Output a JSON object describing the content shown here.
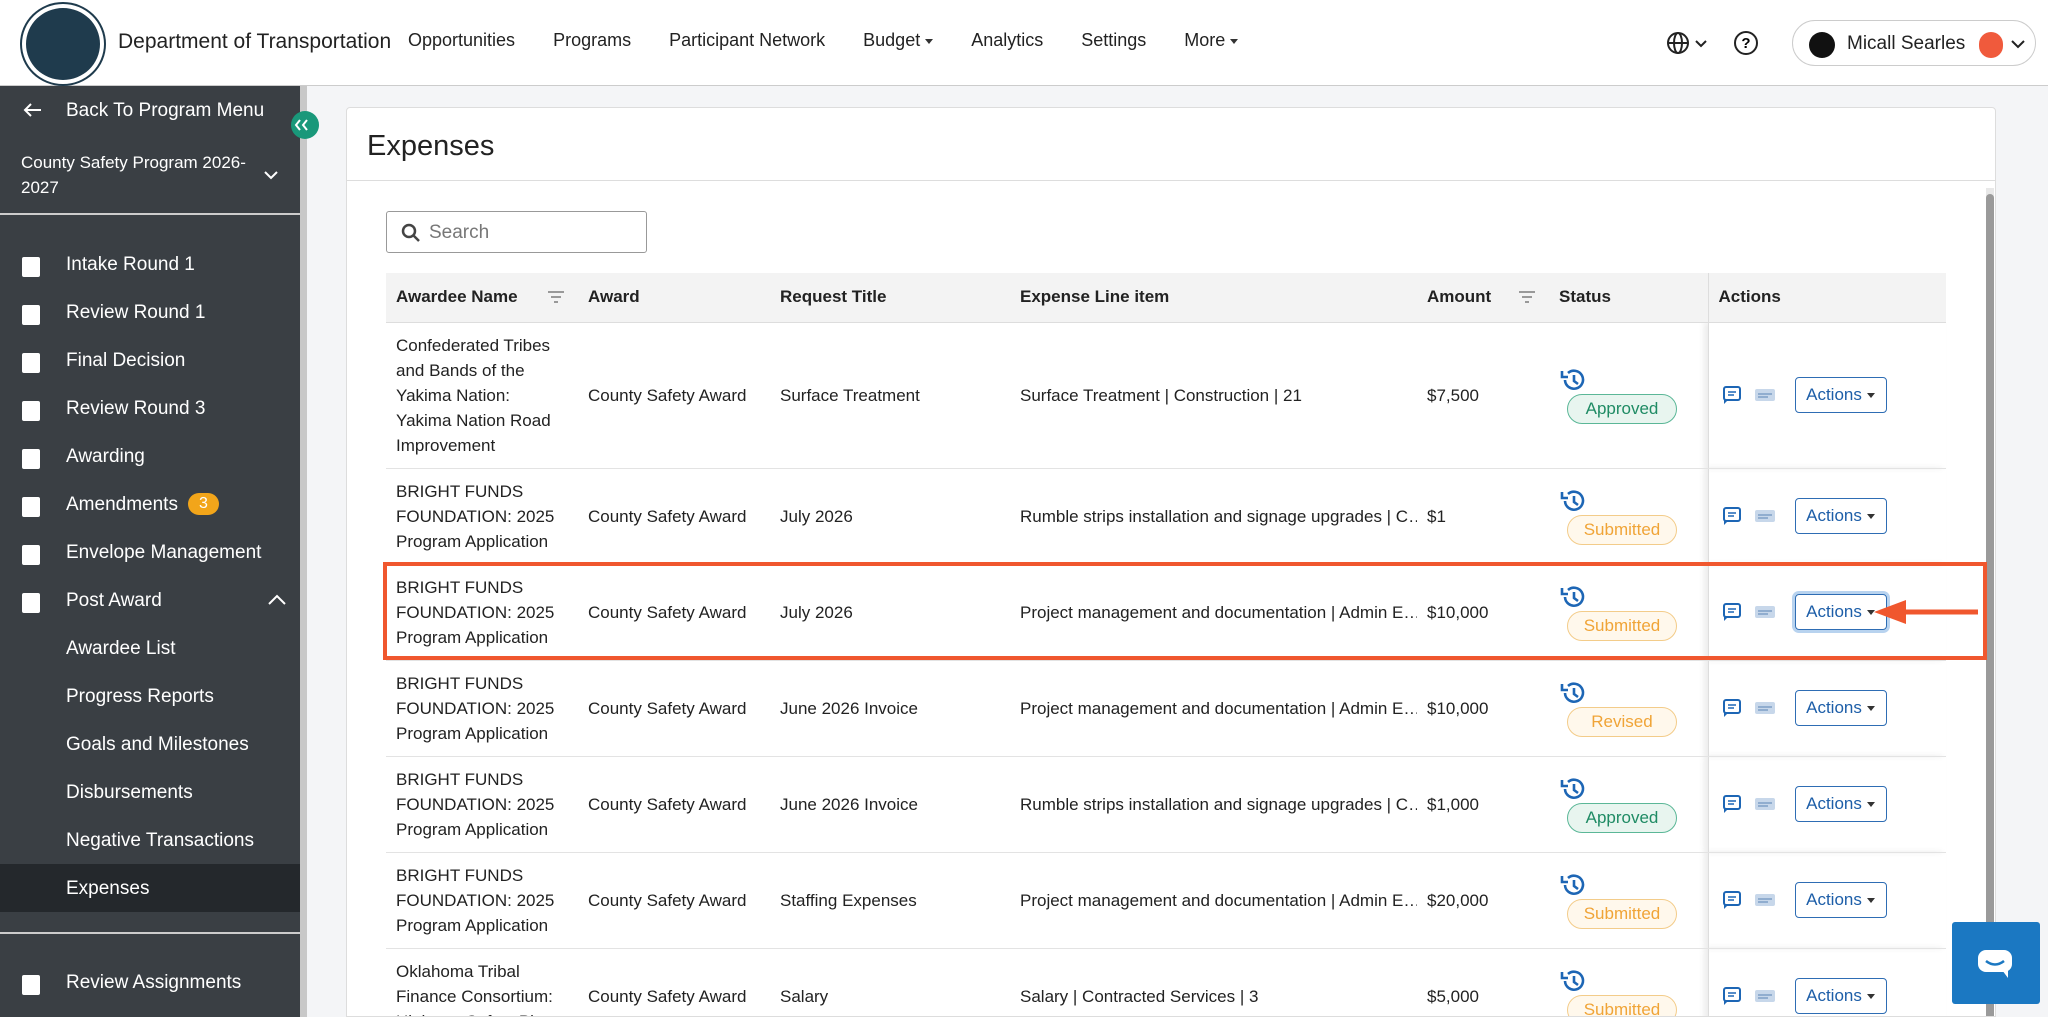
{
  "header": {
    "org": "Department of Transportation",
    "nav": [
      "Opportunities",
      "Programs",
      "Participant Network",
      "Budget",
      "Analytics",
      "Settings",
      "More"
    ],
    "user": "Micall Searles"
  },
  "sidebar": {
    "back": "Back To Program Menu",
    "program": "County Safety Program 2026-2027",
    "items": [
      {
        "label": "Intake Round 1"
      },
      {
        "label": "Review Round 1"
      },
      {
        "label": "Final Decision"
      },
      {
        "label": "Review Round 3"
      },
      {
        "label": "Awarding"
      },
      {
        "label": "Amendments",
        "badge": "3"
      },
      {
        "label": "Envelope Management"
      },
      {
        "label": "Post Award"
      }
    ],
    "post_award_items": [
      "Awardee List",
      "Progress Reports",
      "Goals and Milestones",
      "Disbursements",
      "Negative Transactions",
      "Expenses"
    ],
    "bottom": "Review Assignments"
  },
  "main": {
    "title": "Expenses",
    "search": "Search",
    "action_label": "Actions",
    "columns": [
      "Awardee Name",
      "Award",
      "Request Title",
      "Expense Line item",
      "Amount",
      "Status",
      "Actions"
    ],
    "rows": [
      {
        "awardee": "Confederated Tribes and Bands of the Yakima Nation: Yakima Nation Road Improvement",
        "award": "County Safety Award",
        "request_title": "Surface Treatment",
        "expense": "Surface Treatment | Construction | 21",
        "amount": "$7,500",
        "status": "Approved"
      },
      {
        "awardee": "BRIGHT FUNDS FOUNDATION: 2025 Program Application",
        "award": "County Safety Award",
        "request_title": "July 2026",
        "expense": "Rumble strips installation and signage upgrades | C…",
        "amount": "$1",
        "status": "Submitted"
      },
      {
        "awardee": "BRIGHT FUNDS FOUNDATION: 2025 Program Application",
        "award": "County Safety Award",
        "request_title": "July 2026",
        "expense": "Project management and documentation | Admin E…",
        "amount": "$10,000",
        "status": "Submitted"
      },
      {
        "awardee": "BRIGHT FUNDS FOUNDATION: 2025 Program Application",
        "award": "County Safety Award",
        "request_title": "June 2026 Invoice",
        "expense": "Project management and documentation | Admin E…",
        "amount": "$10,000",
        "status": "Revised"
      },
      {
        "awardee": "BRIGHT FUNDS FOUNDATION: 2025 Program Application",
        "award": "County Safety Award",
        "request_title": "June 2026 Invoice",
        "expense": "Rumble strips installation and signage upgrades | C…",
        "amount": "$1,000",
        "status": "Approved"
      },
      {
        "awardee": "BRIGHT FUNDS FOUNDATION: 2025 Program Application",
        "award": "County Safety Award",
        "request_title": "Staffing Expenses",
        "expense": "Project management and documentation | Admin E…",
        "amount": "$20,000",
        "status": "Submitted"
      },
      {
        "awardee": "Oklahoma Tribal Finance Consortium: Highway Safety Pl",
        "award": "County Safety Award",
        "request_title": "Salary",
        "expense": "Salary | Contracted Services | 3",
        "amount": "$5,000",
        "status": "Submitted"
      }
    ]
  }
}
